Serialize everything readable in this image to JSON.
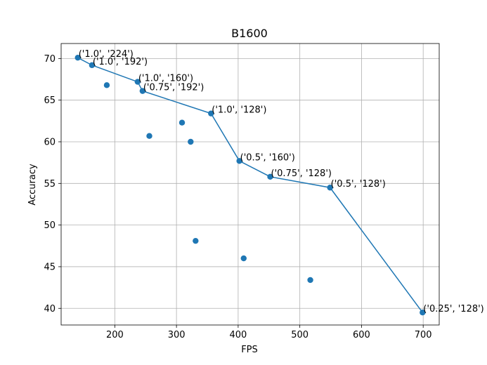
{
  "chart_data": {
    "type": "scatter",
    "title": "B1600",
    "xlabel": "FPS",
    "ylabel": "Accuracy",
    "xlim": [
      113,
      726
    ],
    "ylim": [
      38.0,
      71.8
    ],
    "xticks": [
      200,
      300,
      400,
      500,
      600,
      700
    ],
    "yticks": [
      40,
      45,
      50,
      55,
      60,
      65,
      70
    ],
    "grid": true,
    "colors": {
      "marker": "#1f77b4",
      "line": "#1f77b4",
      "grid": "#b0b0b0"
    },
    "scatter_points": [
      {
        "x": 140,
        "y": 70.1
      },
      {
        "x": 163,
        "y": 69.2
      },
      {
        "x": 187,
        "y": 66.8
      },
      {
        "x": 237,
        "y": 67.2
      },
      {
        "x": 245,
        "y": 66.1
      },
      {
        "x": 256,
        "y": 60.7
      },
      {
        "x": 309,
        "y": 62.3
      },
      {
        "x": 323,
        "y": 60.0
      },
      {
        "x": 331,
        "y": 48.1
      },
      {
        "x": 356,
        "y": 63.4
      },
      {
        "x": 402,
        "y": 57.7
      },
      {
        "x": 409,
        "y": 46.0
      },
      {
        "x": 452,
        "y": 55.8
      },
      {
        "x": 517,
        "y": 43.4
      },
      {
        "x": 549,
        "y": 54.5
      },
      {
        "x": 699,
        "y": 39.5
      }
    ],
    "frontier_line": [
      {
        "x": 140,
        "y": 70.1
      },
      {
        "x": 163,
        "y": 69.2
      },
      {
        "x": 237,
        "y": 67.2
      },
      {
        "x": 245,
        "y": 66.1
      },
      {
        "x": 356,
        "y": 63.4
      },
      {
        "x": 402,
        "y": 57.7
      },
      {
        "x": 452,
        "y": 55.8
      },
      {
        "x": 549,
        "y": 54.5
      },
      {
        "x": 699,
        "y": 39.5
      }
    ],
    "annotations": [
      {
        "x": 140,
        "y": 70.1,
        "text": "('1.0', '224')"
      },
      {
        "x": 163,
        "y": 69.2,
        "text": "('1.0', '192')"
      },
      {
        "x": 237,
        "y": 67.2,
        "text": "('1.0', '160')"
      },
      {
        "x": 245,
        "y": 66.1,
        "text": "('0.75', '192')"
      },
      {
        "x": 356,
        "y": 63.4,
        "text": "('1.0', '128')"
      },
      {
        "x": 402,
        "y": 57.7,
        "text": "('0.5', '160')"
      },
      {
        "x": 452,
        "y": 55.8,
        "text": "('0.75', '128')"
      },
      {
        "x": 549,
        "y": 54.5,
        "text": "('0.5', '128')"
      },
      {
        "x": 699,
        "y": 39.5,
        "text": "('0.25', '128')"
      }
    ]
  }
}
